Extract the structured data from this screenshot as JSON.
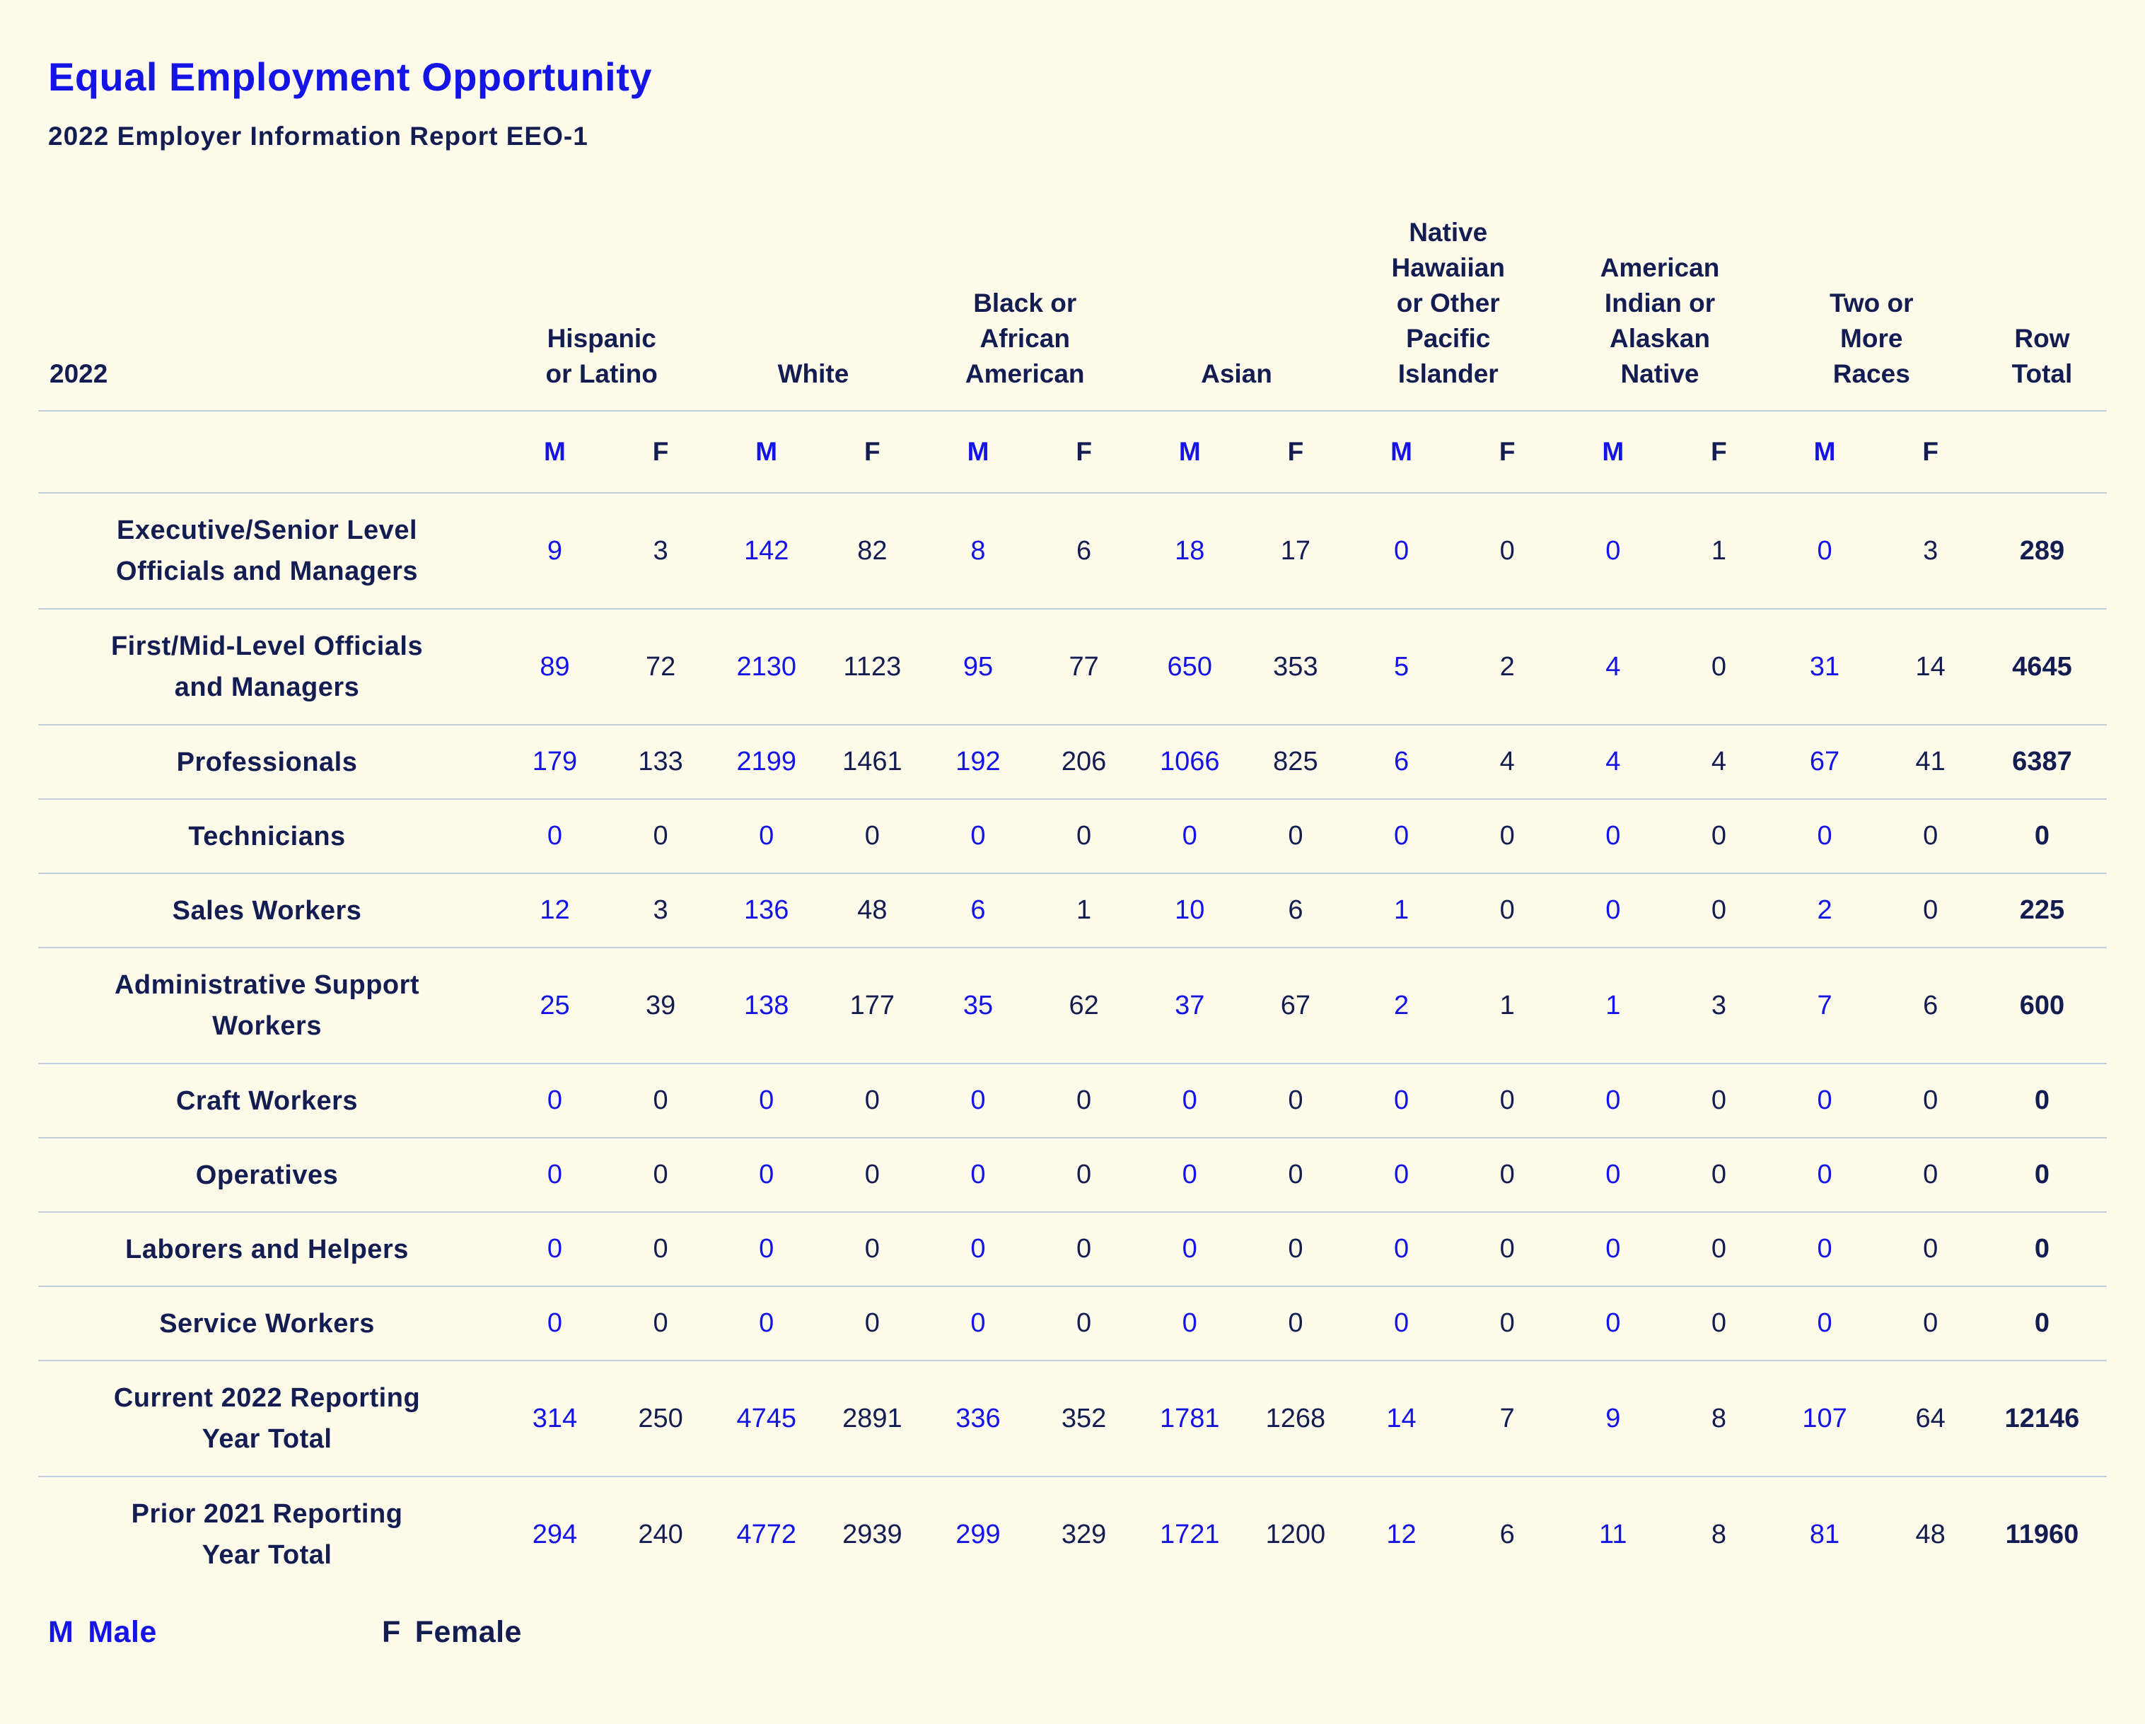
{
  "title": "Equal Employment Opportunity",
  "subtitle": "2022 Employer Information Report EEO-1",
  "table": {
    "year_label": "2022",
    "groups": [
      [
        "Hispanic",
        "or Latino"
      ],
      [
        "White"
      ],
      [
        "Black or",
        "African",
        "American"
      ],
      [
        "Asian"
      ],
      [
        "Native",
        "Hawaiian",
        "or Other",
        "Pacific",
        "Islander"
      ],
      [
        "American",
        "Indian or",
        "Alaskan",
        "Native"
      ],
      [
        "Two or",
        "More",
        "Races"
      ]
    ],
    "row_total_header": [
      "Row",
      "Total"
    ],
    "male_code": "M",
    "female_code": "F",
    "rows": [
      {
        "label": [
          "Executive/Senior Level",
          "Officials and Managers"
        ],
        "values": [
          "9",
          "3",
          "142",
          "82",
          "8",
          "6",
          "18",
          "17",
          "0",
          "0",
          "0",
          "1",
          "0",
          "3"
        ],
        "total": "289"
      },
      {
        "label": [
          "First/Mid-Level Officials",
          "and Managers"
        ],
        "values": [
          "89",
          "72",
          "2130",
          "1123",
          "95",
          "77",
          "650",
          "353",
          "5",
          "2",
          "4",
          "0",
          "31",
          "14"
        ],
        "total": "4645"
      },
      {
        "label": [
          "Professionals"
        ],
        "values": [
          "179",
          "133",
          "2199",
          "1461",
          "192",
          "206",
          "1066",
          "825",
          "6",
          "4",
          "4",
          "4",
          "67",
          "41"
        ],
        "total": "6387"
      },
      {
        "label": [
          "Technicians"
        ],
        "values": [
          "0",
          "0",
          "0",
          "0",
          "0",
          "0",
          "0",
          "0",
          "0",
          "0",
          "0",
          "0",
          "0",
          "0"
        ],
        "total": "0"
      },
      {
        "label": [
          "Sales Workers"
        ],
        "values": [
          "12",
          "3",
          "136",
          "48",
          "6",
          "1",
          "10",
          "6",
          "1",
          "0",
          "0",
          "0",
          "2",
          "0"
        ],
        "total": "225"
      },
      {
        "label": [
          "Administrative Support",
          "Workers"
        ],
        "values": [
          "25",
          "39",
          "138",
          "177",
          "35",
          "62",
          "37",
          "67",
          "2",
          "1",
          "1",
          "3",
          "7",
          "6"
        ],
        "total": "600"
      },
      {
        "label": [
          "Craft Workers"
        ],
        "values": [
          "0",
          "0",
          "0",
          "0",
          "0",
          "0",
          "0",
          "0",
          "0",
          "0",
          "0",
          "0",
          "0",
          "0"
        ],
        "total": "0"
      },
      {
        "label": [
          "Operatives"
        ],
        "values": [
          "0",
          "0",
          "0",
          "0",
          "0",
          "0",
          "0",
          "0",
          "0",
          "0",
          "0",
          "0",
          "0",
          "0"
        ],
        "total": "0"
      },
      {
        "label": [
          "Laborers and Helpers"
        ],
        "values": [
          "0",
          "0",
          "0",
          "0",
          "0",
          "0",
          "0",
          "0",
          "0",
          "0",
          "0",
          "0",
          "0",
          "0"
        ],
        "total": "0"
      },
      {
        "label": [
          "Service Workers"
        ],
        "values": [
          "0",
          "0",
          "0",
          "0",
          "0",
          "0",
          "0",
          "0",
          "0",
          "0",
          "0",
          "0",
          "0",
          "0"
        ],
        "total": "0"
      },
      {
        "label": [
          "Current 2022 Reporting",
          "Year Total"
        ],
        "values": [
          "314",
          "250",
          "4745",
          "2891",
          "336",
          "352",
          "1781",
          "1268",
          "14",
          "7",
          "9",
          "8",
          "107",
          "64"
        ],
        "total": "12146"
      },
      {
        "label": [
          "Prior 2021 Reporting",
          "Year Total"
        ],
        "values": [
          "294",
          "240",
          "4772",
          "2939",
          "299",
          "329",
          "1721",
          "1200",
          "12",
          "6",
          "11",
          "8",
          "81",
          "48"
        ],
        "total": "11960"
      }
    ]
  },
  "legend": {
    "male_code": "M",
    "male_label": "Male",
    "female_code": "F",
    "female_label": "Female"
  },
  "colors": {
    "background": "#fefbeb",
    "accent_blue": "#1414e6",
    "text_navy": "#141d52",
    "rule": "#c3cfdc"
  }
}
